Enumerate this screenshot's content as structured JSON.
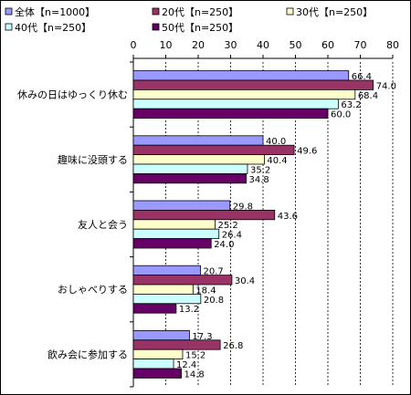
{
  "chart_data": {
    "type": "bar",
    "orientation": "horizontal",
    "title": "",
    "xlabel": "",
    "ylabel": "",
    "xlim": [
      0,
      80
    ],
    "x_ticks": [
      0,
      10,
      20,
      30,
      40,
      50,
      60,
      70,
      80
    ],
    "grid": "vertical dashed",
    "legend_position": "top",
    "categories": [
      "休みの日はゆっくり休む",
      "趣味に没頭する",
      "友人と会う",
      "おしゃべりする",
      "飲み会に参加する"
    ],
    "series": [
      {
        "name": "全体【n=1000】",
        "color": "#9999ff",
        "values": [
          66.4,
          40.0,
          29.8,
          20.7,
          17.3
        ]
      },
      {
        "name": "20代【n=250】",
        "color": "#993366",
        "values": [
          74.0,
          49.6,
          43.6,
          30.4,
          26.8
        ]
      },
      {
        "name": "30代【n=250】",
        "color": "#ffffcc",
        "values": [
          68.4,
          40.4,
          25.2,
          18.4,
          15.2
        ]
      },
      {
        "name": "40代【n=250】",
        "color": "#ccffff",
        "values": [
          63.2,
          35.2,
          26.4,
          20.8,
          12.4
        ]
      },
      {
        "name": "50代【n=250】",
        "color": "#660066",
        "values": [
          60.0,
          34.8,
          24.0,
          13.2,
          14.8
        ]
      }
    ]
  }
}
